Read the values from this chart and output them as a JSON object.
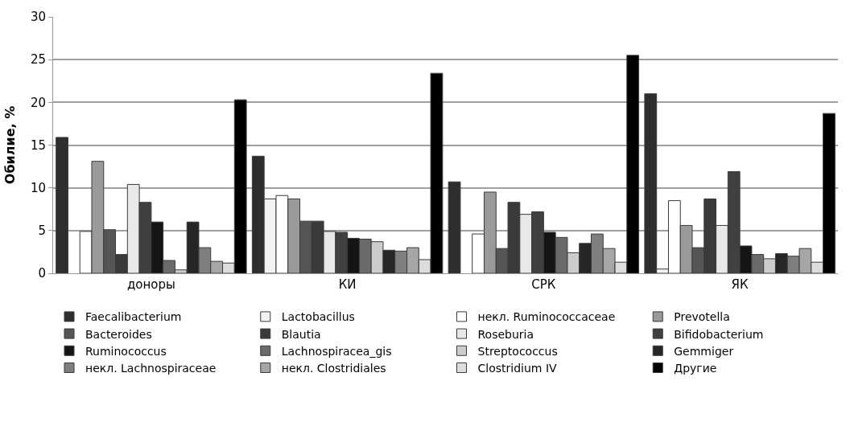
{
  "chart_data": {
    "type": "bar",
    "ylabel": "Обилие, %",
    "categories": [
      "доноры",
      "КИ",
      "СРК",
      "ЯК"
    ],
    "ylim": [
      0,
      30
    ],
    "yticks": [
      0,
      5,
      10,
      15,
      20,
      25,
      30
    ],
    "grid": "y",
    "legend": "bottom",
    "series": [
      {
        "name": "Faecalibacterium",
        "color": "#2e2e2e",
        "values": [
          15.9,
          13.7,
          10.7,
          21.0
        ]
      },
      {
        "name": "Lactobacillus",
        "color": "#f2f2f2",
        "values": [
          null,
          8.7,
          null,
          0.5
        ]
      },
      {
        "name": "некл. Ruminococcaceae",
        "color": "#ffffff",
        "values": [
          4.9,
          9.1,
          4.6,
          8.5
        ]
      },
      {
        "name": "Prevotella",
        "color": "#9a9a9a",
        "values": [
          13.1,
          8.7,
          9.5,
          5.6
        ]
      },
      {
        "name": "Bacteroides",
        "color": "#555555",
        "values": [
          5.1,
          6.1,
          2.9,
          3.0
        ]
      },
      {
        "name": "Blautia",
        "color": "#3a3a3a",
        "values": [
          2.2,
          6.1,
          8.3,
          8.7
        ]
      },
      {
        "name": "Roseburia",
        "color": "#e8e8e8",
        "values": [
          10.4,
          4.9,
          6.9,
          5.6
        ]
      },
      {
        "name": "Bifidobacterium",
        "color": "#404040",
        "values": [
          8.3,
          4.8,
          7.2,
          11.9
        ]
      },
      {
        "name": "Ruminococcus",
        "color": "#141414",
        "values": [
          6.0,
          4.1,
          4.8,
          3.2
        ]
      },
      {
        "name": "Lachnospiracea_gis",
        "color": "#6a6a6a",
        "values": [
          1.5,
          4.0,
          4.2,
          2.2
        ]
      },
      {
        "name": "Streptococcus",
        "color": "#cccccc",
        "values": [
          0.4,
          3.7,
          2.4,
          1.7
        ]
      },
      {
        "name": "Gemmiger",
        "color": "#262626",
        "values": [
          6.0,
          2.7,
          3.5,
          2.3
        ]
      },
      {
        "name": "некл. Lachnospiraceae",
        "color": "#7f7f7f",
        "values": [
          3.0,
          2.6,
          4.6,
          2.0
        ]
      },
      {
        "name": "некл. Clostridiales",
        "color": "#a6a6a6",
        "values": [
          1.4,
          3.0,
          2.9,
          2.9
        ]
      },
      {
        "name": "Clostridium IV",
        "color": "#dddddd",
        "values": [
          1.2,
          1.6,
          1.3,
          1.3
        ]
      },
      {
        "name": "Другие",
        "color": "#000000",
        "values": [
          20.3,
          23.4,
          25.5,
          18.7
        ]
      }
    ]
  }
}
